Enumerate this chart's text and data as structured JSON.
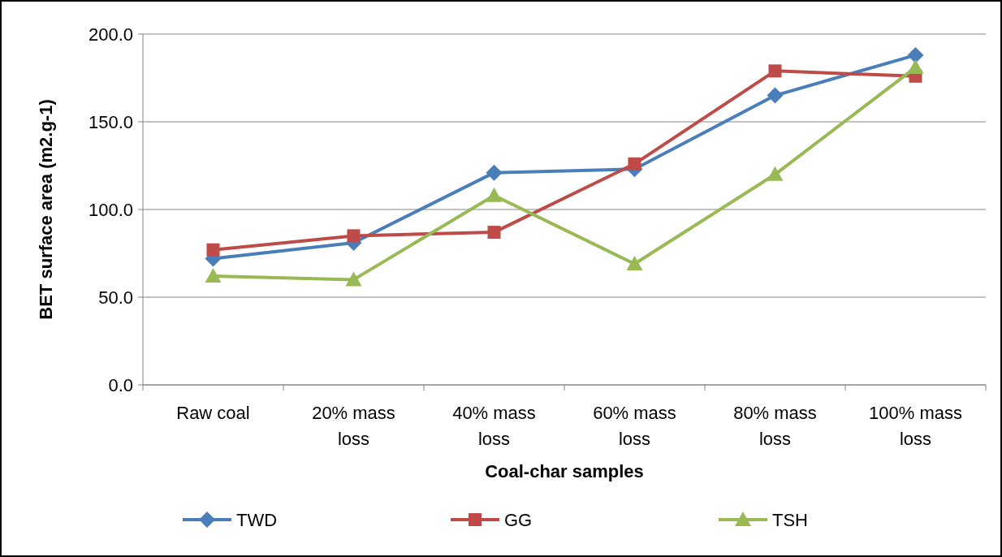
{
  "chart_data": {
    "type": "line",
    "xlabel": "Coal-char samples",
    "ylabel": "BET surface area (m2.g-1)",
    "categories": [
      "Raw coal",
      "20% mass loss",
      "40% mass loss",
      "60% mass loss",
      "80% mass loss",
      "100% mass loss"
    ],
    "series": [
      {
        "name": "TWD",
        "color": "#4a7ebb",
        "marker": "diamond",
        "values": [
          72,
          81,
          121,
          123,
          165,
          188
        ]
      },
      {
        "name": "GG",
        "color": "#be4b48",
        "marker": "square",
        "values": [
          77,
          85,
          87,
          126,
          179,
          176
        ]
      },
      {
        "name": "TSH",
        "color": "#98b954",
        "marker": "triangle",
        "values": [
          62,
          60,
          108,
          69,
          120,
          181
        ]
      }
    ],
    "ylim": [
      0,
      200
    ],
    "yticks": [
      {
        "value": 0,
        "label": "0.0"
      },
      {
        "value": 50,
        "label": "50.0"
      },
      {
        "value": 100,
        "label": "100.0"
      },
      {
        "value": 150,
        "label": "150.0"
      },
      {
        "value": 200,
        "label": "200.0"
      }
    ],
    "grid": "y",
    "legend": "bottom"
  }
}
